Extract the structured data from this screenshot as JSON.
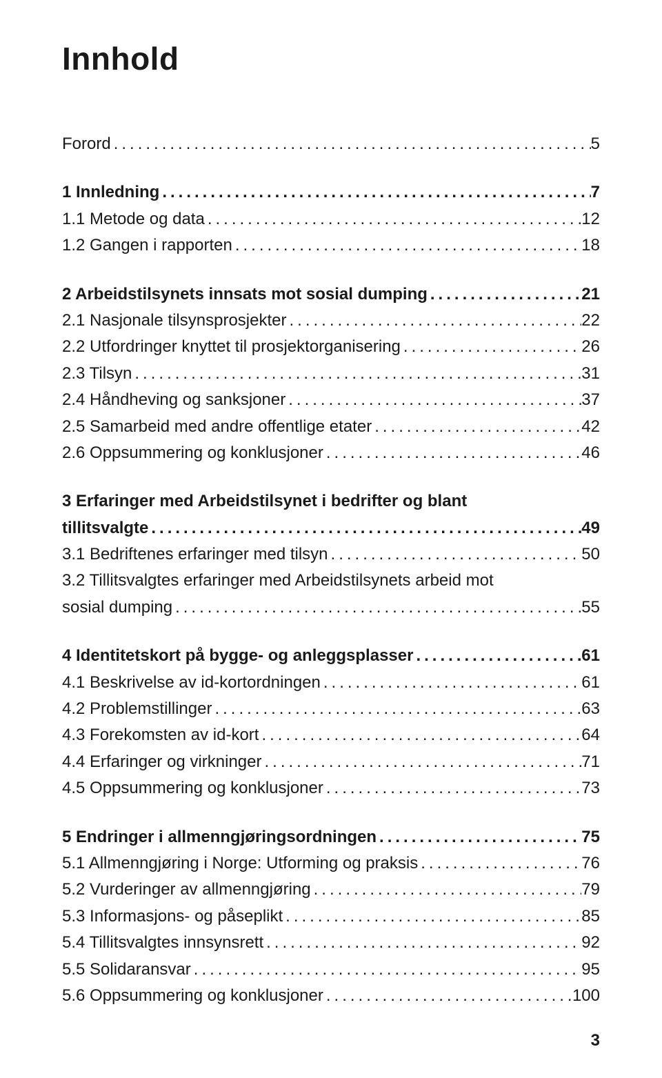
{
  "title": "Innhold",
  "footer_page": "3",
  "groups": [
    {
      "entries": [
        {
          "label": "Forord",
          "page": "5",
          "bold": false
        }
      ]
    },
    {
      "entries": [
        {
          "label": "1 Innledning",
          "page": "7",
          "bold": true
        },
        {
          "label": "1.1 Metode og data",
          "page": "12",
          "bold": false
        },
        {
          "label": "1.2 Gangen i rapporten",
          "page": "18",
          "bold": false
        }
      ]
    },
    {
      "entries": [
        {
          "label": "2 Arbeidstilsynets innsats mot sosial dumping",
          "page": "21",
          "bold": true
        },
        {
          "label": "2.1 Nasjonale tilsynsprosjekter",
          "page": "22",
          "bold": false
        },
        {
          "label": "2.2 Utfordringer knyttet til prosjektorganisering",
          "page": "26",
          "bold": false
        },
        {
          "label": "2.3 Tilsyn",
          "page": "31",
          "bold": false
        },
        {
          "label": "2.4 Håndheving og sanksjoner",
          "page": "37",
          "bold": false
        },
        {
          "label": "2.5 Samarbeid med andre offentlige etater",
          "page": "42",
          "bold": false
        },
        {
          "label": "2.6 Oppsummering og konklusjoner",
          "page": "46",
          "bold": false
        }
      ]
    },
    {
      "entries": [
        {
          "label_line1": "3 Erfaringer med Arbeidstilsynet i bedrifter og blant",
          "label_line2": "tillitsvalgte",
          "page": "49",
          "bold": true,
          "multiline": true
        },
        {
          "label": "3.1 Bedriftenes erfaringer med tilsyn",
          "page": "50",
          "bold": false
        },
        {
          "label_line1": "3.2 Tillitsvalgtes erfaringer med Arbeidstilsynets arbeid mot",
          "label_line2": "sosial dumping",
          "page": "55",
          "bold": false,
          "multiline": true
        }
      ]
    },
    {
      "entries": [
        {
          "label": "4 Identitetskort på bygge- og anleggsplasser",
          "page": "61",
          "bold": true
        },
        {
          "label": "4.1 Beskrivelse av id-kortordningen",
          "page": "61",
          "bold": false
        },
        {
          "label": "4.2 Problemstillinger",
          "page": "63",
          "bold": false
        },
        {
          "label": "4.3 Forekomsten av id-kort",
          "page": "64",
          "bold": false
        },
        {
          "label": "4.4 Erfaringer og virkninger",
          "page": "71",
          "bold": false
        },
        {
          "label": "4.5 Oppsummering og konklusjoner",
          "page": "73",
          "bold": false
        }
      ]
    },
    {
      "entries": [
        {
          "label": "5 Endringer i allmenngjøringsordningen",
          "page": "75",
          "bold": true
        },
        {
          "label": "5.1 Allmenngjøring i Norge: Utforming og praksis",
          "page": "76",
          "bold": false
        },
        {
          "label": "5.2 Vurderinger av allmenngjøring",
          "page": "79",
          "bold": false
        },
        {
          "label": "5.3 Informasjons- og påseplikt",
          "page": "85",
          "bold": false
        },
        {
          "label": "5.4 Tillitsvalgtes innsynsrett",
          "page": "92",
          "bold": false
        },
        {
          "label": "5.5 Solidaransvar",
          "page": "95",
          "bold": false
        },
        {
          "label": "5.6 Oppsummering og konklusjoner",
          "page": "100",
          "bold": false
        }
      ]
    }
  ]
}
